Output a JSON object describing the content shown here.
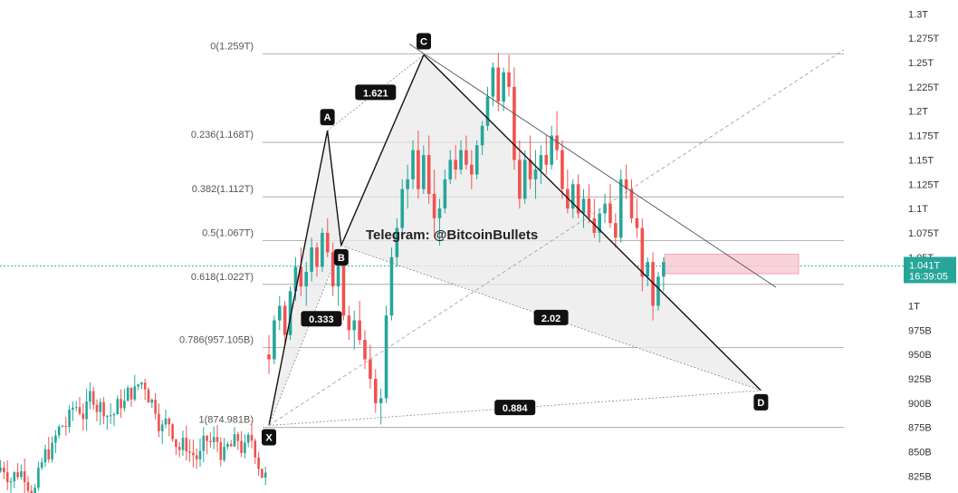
{
  "watermark": "Telegram: @BitcoinBullets",
  "colors": {
    "up": "#26a69a",
    "down": "#ef5350",
    "harmonic_fill": "#e9e9e9",
    "pattern_line": "#111111",
    "fib_line": "#9e9e9e",
    "target_zone": "#f8c8d0",
    "price_tag": "#26a69a"
  },
  "chart_data": {
    "type": "candlestick",
    "title": "",
    "ylim": [
      816000000000,
      1305000000000
    ],
    "y_ticks": [
      "1.3T",
      "1.275T",
      "1.25T",
      "1.225T",
      "1.2T",
      "1.175T",
      "1.15T",
      "1.125T",
      "1.1T",
      "1.075T",
      "1.05T",
      "1T",
      "975B",
      "950B",
      "925B",
      "900B",
      "875B",
      "850B",
      "825B"
    ],
    "y_tick_values": [
      1300,
      1275,
      1250,
      1225,
      1200,
      1175,
      1150,
      1125,
      1100,
      1075,
      1050,
      1000,
      975,
      950,
      925,
      900,
      875,
      850,
      825
    ],
    "current_price": {
      "label": "1.041T",
      "countdown": "16:39:05",
      "value": 1041
    },
    "fib_levels": [
      {
        "label": "0(1.259T)",
        "value": 1259
      },
      {
        "label": "0.236(1.168T)",
        "value": 1168
      },
      {
        "label": "0.382(1.112T)",
        "value": 1112
      },
      {
        "label": "0.5(1.067T)",
        "value": 1067
      },
      {
        "label": "0.618(1.022T)",
        "value": 1022
      },
      {
        "label": "0.786(957.105B)",
        "value": 957.105
      },
      {
        "label": "1(874.981B)",
        "value": 874.981
      }
    ],
    "pattern_points": [
      {
        "label": "X",
        "bar": 0,
        "value": 877
      },
      {
        "label": "A",
        "bar": 17,
        "value": 1180
      },
      {
        "label": "B",
        "bar": 21,
        "value": 1062
      },
      {
        "label": "C",
        "bar": 45,
        "value": 1258
      },
      {
        "label": "D",
        "bar": 143,
        "value": 913
      }
    ],
    "ratios": [
      {
        "label": "0.333",
        "value": 0.333
      },
      {
        "label": "1.621",
        "value": 1.621
      },
      {
        "label": "2.02",
        "value": 2.02
      },
      {
        "label": "0.884",
        "value": 0.884
      }
    ],
    "target_zone": {
      "low": 1033,
      "high": 1053
    },
    "bars": [
      [
        950,
        970,
        930,
        945
      ],
      [
        945,
        990,
        940,
        985
      ],
      [
        985,
        1010,
        975,
        1000
      ],
      [
        1000,
        1005,
        960,
        970
      ],
      [
        970,
        1020,
        965,
        1015
      ],
      [
        1015,
        1050,
        1005,
        1040
      ],
      [
        1040,
        1060,
        1010,
        1020
      ],
      [
        1020,
        1045,
        1000,
        1035
      ],
      [
        1035,
        1070,
        1025,
        1060
      ],
      [
        1060,
        1065,
        1030,
        1040
      ],
      [
        1040,
        1080,
        1035,
        1075
      ],
      [
        1075,
        1090,
        1050,
        1055
      ],
      [
        1055,
        1065,
        1010,
        1020
      ],
      [
        1020,
        1050,
        1000,
        1045
      ],
      [
        1045,
        1055,
        985,
        990
      ],
      [
        990,
        1000,
        965,
        975
      ],
      [
        975,
        995,
        955,
        985
      ],
      [
        985,
        1005,
        960,
        965
      ],
      [
        965,
        975,
        935,
        945
      ],
      [
        945,
        960,
        915,
        925
      ],
      [
        925,
        935,
        890,
        900
      ],
      [
        900,
        915,
        878,
        905
      ],
      [
        905,
        1000,
        900,
        990
      ],
      [
        990,
        1060,
        985,
        1050
      ],
      [
        1050,
        1090,
        1040,
        1080
      ],
      [
        1080,
        1130,
        1070,
        1120
      ],
      [
        1120,
        1145,
        1100,
        1130
      ],
      [
        1130,
        1170,
        1120,
        1160
      ],
      [
        1160,
        1180,
        1110,
        1120
      ],
      [
        1120,
        1165,
        1115,
        1155
      ],
      [
        1155,
        1175,
        1105,
        1115
      ],
      [
        1115,
        1140,
        1070,
        1090
      ],
      [
        1090,
        1110,
        1062,
        1100
      ],
      [
        1100,
        1140,
        1095,
        1130
      ],
      [
        1130,
        1160,
        1125,
        1150
      ],
      [
        1150,
        1165,
        1130,
        1140
      ],
      [
        1140,
        1170,
        1135,
        1160
      ],
      [
        1160,
        1175,
        1140,
        1145
      ],
      [
        1145,
        1160,
        1120,
        1135
      ],
      [
        1135,
        1170,
        1130,
        1165
      ],
      [
        1165,
        1190,
        1155,
        1185
      ],
      [
        1185,
        1225,
        1180,
        1215
      ],
      [
        1215,
        1250,
        1205,
        1245
      ],
      [
        1245,
        1260,
        1200,
        1210
      ],
      [
        1210,
        1245,
        1200,
        1240
      ],
      [
        1240,
        1258,
        1215,
        1225
      ],
      [
        1225,
        1245,
        1140,
        1150
      ],
      [
        1150,
        1170,
        1100,
        1110
      ],
      [
        1110,
        1160,
        1105,
        1150
      ],
      [
        1150,
        1175,
        1120,
        1130
      ],
      [
        1130,
        1160,
        1110,
        1140
      ],
      [
        1140,
        1165,
        1125,
        1155
      ],
      [
        1155,
        1175,
        1135,
        1145
      ],
      [
        1145,
        1185,
        1140,
        1175
      ],
      [
        1175,
        1200,
        1150,
        1160
      ],
      [
        1160,
        1170,
        1110,
        1120
      ],
      [
        1120,
        1140,
        1095,
        1100
      ],
      [
        1100,
        1130,
        1090,
        1125
      ],
      [
        1125,
        1135,
        1090,
        1095
      ],
      [
        1095,
        1120,
        1080,
        1110
      ],
      [
        1110,
        1125,
        1085,
        1090
      ],
      [
        1090,
        1110,
        1070,
        1075
      ],
      [
        1075,
        1100,
        1065,
        1095
      ],
      [
        1095,
        1115,
        1085,
        1105
      ],
      [
        1105,
        1125,
        1080,
        1085
      ],
      [
        1085,
        1095,
        1060,
        1070
      ],
      [
        1070,
        1140,
        1065,
        1130
      ],
      [
        1130,
        1145,
        1110,
        1120
      ],
      [
        1120,
        1130,
        1085,
        1090
      ],
      [
        1090,
        1110,
        1070,
        1080
      ],
      [
        1080,
        1090,
        1015,
        1030
      ],
      [
        1030,
        1050,
        1020,
        1045
      ],
      [
        1045,
        1055,
        985,
        1000
      ],
      [
        1000,
        1035,
        995,
        1030
      ],
      [
        1030,
        1050,
        1015,
        1045
      ]
    ]
  }
}
